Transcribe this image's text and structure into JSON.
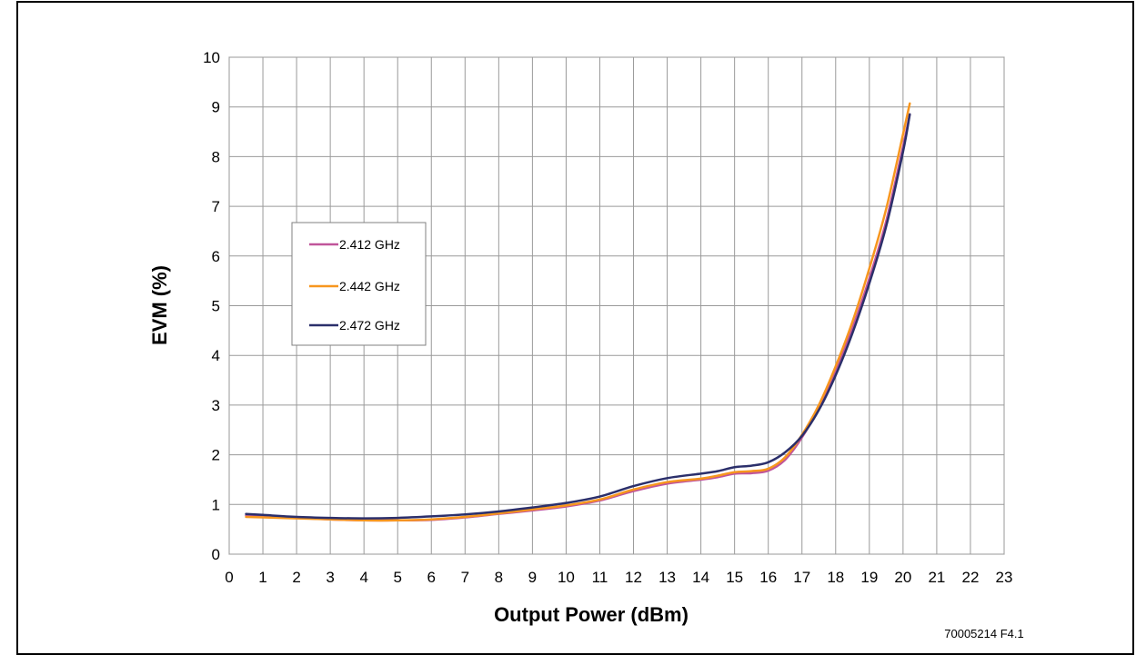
{
  "chart_data": {
    "type": "line",
    "title": "",
    "xlabel": "Output Power (dBm)",
    "ylabel": "EVM (%)",
    "xlim": [
      0,
      23
    ],
    "ylim": [
      0,
      10
    ],
    "x_ticks": [
      "0",
      "1",
      "2",
      "3",
      "4",
      "5",
      "6",
      "7",
      "8",
      "9",
      "10",
      "11",
      "12",
      "13",
      "14",
      "15",
      "16",
      "17",
      "18",
      "19",
      "20",
      "21",
      "22",
      "23"
    ],
    "y_ticks": [
      "0",
      "1",
      "2",
      "3",
      "4",
      "5",
      "6",
      "7",
      "8",
      "9",
      "10"
    ],
    "grid": true,
    "legend_position": "left",
    "series": [
      {
        "name": "2.412 GHz",
        "color": "#c0559a",
        "x": [
          0.5,
          1,
          2,
          3,
          4,
          5,
          6,
          7,
          8,
          9,
          10,
          11,
          12,
          13,
          14,
          14.5,
          15,
          15.5,
          16,
          16.5,
          17,
          17.5,
          18,
          18.5,
          19,
          19.5,
          20,
          20.2
        ],
        "y": [
          0.78,
          0.76,
          0.73,
          0.7,
          0.68,
          0.68,
          0.69,
          0.74,
          0.81,
          0.88,
          0.96,
          1.08,
          1.27,
          1.42,
          1.5,
          1.55,
          1.62,
          1.63,
          1.68,
          1.9,
          2.35,
          2.95,
          3.7,
          4.55,
          5.55,
          6.7,
          8.2,
          8.85
        ]
      },
      {
        "name": "2.442 GHz",
        "color": "#f7961e",
        "x": [
          0.5,
          1,
          2,
          3,
          4,
          5,
          6,
          7,
          8,
          9,
          10,
          11,
          12,
          13,
          14,
          14.5,
          15,
          15.5,
          16,
          16.5,
          17,
          17.5,
          18,
          18.5,
          19,
          19.5,
          20,
          20.2
        ],
        "y": [
          0.75,
          0.74,
          0.72,
          0.7,
          0.68,
          0.68,
          0.7,
          0.75,
          0.82,
          0.9,
          0.98,
          1.1,
          1.3,
          1.45,
          1.52,
          1.58,
          1.65,
          1.67,
          1.72,
          1.95,
          2.4,
          3.0,
          3.78,
          4.68,
          5.75,
          6.95,
          8.45,
          9.07
        ]
      },
      {
        "name": "2.472 GHz",
        "color": "#2b2f6b",
        "x": [
          0.5,
          1,
          2,
          3,
          4,
          5,
          6,
          7,
          8,
          9,
          10,
          11,
          12,
          13,
          14,
          14.5,
          15,
          15.5,
          16,
          16.5,
          17,
          17.5,
          18,
          18.5,
          19,
          19.5,
          20,
          20.2
        ],
        "y": [
          0.81,
          0.79,
          0.75,
          0.73,
          0.72,
          0.73,
          0.76,
          0.8,
          0.86,
          0.94,
          1.03,
          1.16,
          1.37,
          1.53,
          1.62,
          1.67,
          1.75,
          1.78,
          1.85,
          2.05,
          2.38,
          2.9,
          3.6,
          4.45,
          5.45,
          6.6,
          8.1,
          8.85
        ]
      }
    ]
  },
  "figure_id": "70005214 F4.1"
}
